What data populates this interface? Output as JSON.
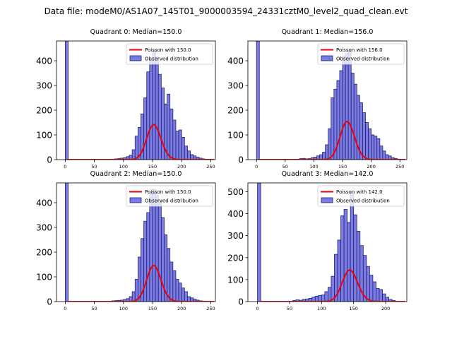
{
  "figure_title": "Data file: modeM0/AS1A07_145T01_9000003594_24331cztM0_level2_quad_clean.evt",
  "chart_data": [
    {
      "type": "bar",
      "title": "Quadrant 0: Median=150.0",
      "xlabel": "",
      "ylabel": "",
      "xlim": [
        -15,
        258
      ],
      "ylim": [
        0,
        480
      ],
      "xticks": [
        0,
        50,
        100,
        150,
        200,
        250
      ],
      "yticks": [
        0,
        100,
        200,
        300,
        400
      ],
      "bin_width": 5,
      "bins_start": [
        0,
        75,
        80,
        85,
        90,
        95,
        100,
        105,
        110,
        115,
        120,
        125,
        130,
        135,
        140,
        145,
        150,
        155,
        160,
        165,
        170,
        175,
        180,
        185,
        190,
        195,
        200,
        205,
        210,
        215,
        220,
        225,
        230,
        235,
        240
      ],
      "counts": [
        480,
        1,
        2,
        3,
        4,
        6,
        8,
        12,
        18,
        40,
        95,
        130,
        185,
        250,
        355,
        405,
        440,
        415,
        345,
        290,
        225,
        265,
        205,
        160,
        115,
        120,
        90,
        55,
        35,
        20,
        15,
        10,
        6,
        3,
        1
      ],
      "poisson_mean": 150.0,
      "legend": [
        "Poisson with 150.0",
        "Observed distribution"
      ],
      "legend_loc": "upper right"
    },
    {
      "type": "bar",
      "title": "Quadrant 1: Median=156.0",
      "xlabel": "",
      "ylabel": "",
      "xlim": [
        -15,
        262
      ],
      "ylim": [
        0,
        480
      ],
      "xticks": [
        0,
        50,
        100,
        150,
        200,
        250
      ],
      "yticks": [
        0,
        100,
        200,
        300,
        400
      ],
      "bin_width": 5,
      "bins_start": [
        0,
        75,
        80,
        85,
        90,
        95,
        100,
        105,
        110,
        115,
        120,
        125,
        130,
        135,
        140,
        145,
        150,
        155,
        160,
        165,
        170,
        175,
        180,
        185,
        190,
        195,
        200,
        205,
        210,
        215,
        220,
        225,
        230,
        235,
        240,
        245
      ],
      "counts": [
        480,
        4,
        5,
        3,
        4,
        8,
        10,
        15,
        20,
        30,
        60,
        125,
        250,
        285,
        320,
        360,
        420,
        430,
        440,
        350,
        305,
        260,
        230,
        190,
        150,
        125,
        100,
        95,
        85,
        55,
        35,
        20,
        15,
        8,
        5,
        2
      ],
      "poisson_mean": 156.0,
      "legend": [
        "Poisson with 156.0",
        "Observed distribution"
      ],
      "legend_loc": "upper right"
    },
    {
      "type": "bar",
      "title": "Quadrant 2: Median=150.0",
      "xlabel": "",
      "ylabel": "",
      "xlim": [
        -15,
        258
      ],
      "ylim": [
        0,
        480
      ],
      "xticks": [
        0,
        50,
        100,
        150,
        200,
        250
      ],
      "yticks": [
        0,
        100,
        200,
        300,
        400
      ],
      "bin_width": 5,
      "bins_start": [
        0,
        80,
        85,
        90,
        95,
        100,
        105,
        110,
        115,
        120,
        125,
        130,
        135,
        140,
        145,
        150,
        155,
        160,
        165,
        170,
        175,
        180,
        185,
        190,
        195,
        200,
        205,
        210,
        215,
        220,
        225,
        230,
        235,
        240
      ],
      "counts": [
        480,
        3,
        4,
        5,
        6,
        8,
        12,
        20,
        40,
        90,
        180,
        255,
        325,
        360,
        440,
        455,
        430,
        410,
        340,
        270,
        215,
        160,
        125,
        90,
        75,
        55,
        40,
        20,
        15,
        10,
        6,
        3,
        2,
        1
      ],
      "poisson_mean": 150.0,
      "legend": [
        "Poisson with 150.0",
        "Observed distribution"
      ],
      "legend_loc": "upper right"
    },
    {
      "type": "bar",
      "title": "Quadrant 3: Median=142.0",
      "xlabel": "",
      "ylabel": "",
      "xlim": [
        -15,
        233
      ],
      "ylim": [
        0,
        540
      ],
      "xticks": [
        0,
        50,
        100,
        150,
        200
      ],
      "yticks": [
        0,
        100,
        200,
        300,
        400,
        500
      ],
      "bin_width": 5,
      "bins_start": [
        0,
        55,
        60,
        65,
        70,
        75,
        80,
        85,
        90,
        95,
        100,
        105,
        110,
        115,
        120,
        125,
        130,
        135,
        140,
        145,
        150,
        155,
        160,
        165,
        170,
        175,
        180,
        185,
        190,
        195,
        200,
        205,
        210,
        215
      ],
      "counts": [
        540,
        5,
        8,
        6,
        10,
        12,
        15,
        20,
        25,
        28,
        30,
        45,
        65,
        115,
        215,
        280,
        390,
        420,
        360,
        495,
        395,
        320,
        255,
        210,
        160,
        120,
        90,
        60,
        55,
        35,
        20,
        10,
        5,
        2
      ],
      "poisson_mean": 142.0,
      "legend": [
        "Poisson with 142.0",
        "Observed distribution"
      ],
      "legend_loc": "upper right"
    }
  ]
}
